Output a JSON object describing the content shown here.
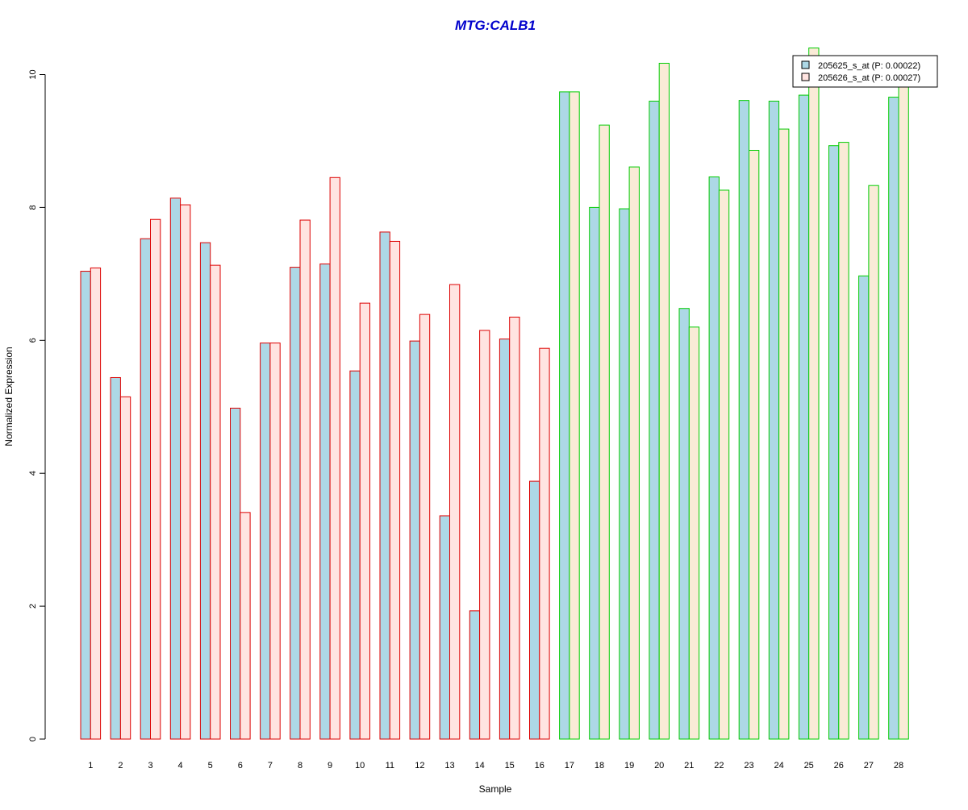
{
  "chart_data": {
    "type": "bar",
    "title": "MTG:CALB1",
    "xlabel": "Sample",
    "ylabel": "Normalized Expression",
    "ylim": [
      0,
      10.4
    ],
    "yticks": [
      "0",
      "2",
      "4",
      "6",
      "8",
      "10"
    ],
    "categories": [
      "1",
      "2",
      "3",
      "4",
      "5",
      "6",
      "7",
      "8",
      "9",
      "10",
      "11",
      "12",
      "13",
      "14",
      "15",
      "16",
      "17",
      "18",
      "19",
      "20",
      "21",
      "22",
      "23",
      "24",
      "25",
      "26",
      "27",
      "28"
    ],
    "groups": [
      {
        "samples": [
          "1",
          "2",
          "3",
          "4",
          "5",
          "6",
          "7",
          "8",
          "9",
          "10",
          "11",
          "12",
          "13",
          "14",
          "15",
          "16"
        ],
        "border_color": "#dd0000"
      },
      {
        "samples": [
          "17",
          "18",
          "19",
          "20",
          "21",
          "22",
          "23",
          "24",
          "25",
          "26",
          "27",
          "28"
        ],
        "border_color": "#00cc00"
      }
    ],
    "series": [
      {
        "name": "205625_s_at (P: 0.00022)",
        "color": "#add8e6",
        "values": [
          7.04,
          5.44,
          7.53,
          8.14,
          7.47,
          4.98,
          5.96,
          7.1,
          7.15,
          5.54,
          7.63,
          5.99,
          3.36,
          1.93,
          6.02,
          3.88,
          9.74,
          8.0,
          7.98,
          9.6,
          6.48,
          8.46,
          9.61,
          9.6,
          9.69,
          8.93,
          6.97,
          9.66
        ]
      },
      {
        "name": "205626_s_at (P: 0.00027)",
        "color_group1": "#ffe4e1",
        "color_group2": "#faebd7",
        "values": [
          7.09,
          5.15,
          7.82,
          8.04,
          7.13,
          3.41,
          5.96,
          7.81,
          8.45,
          6.56,
          7.49,
          6.39,
          6.84,
          6.15,
          6.35,
          5.88,
          9.74,
          9.24,
          8.61,
          10.17,
          6.2,
          8.26,
          8.86,
          9.18,
          10.4,
          8.98,
          8.33,
          9.94
        ]
      }
    ],
    "title_color": "#0000cc",
    "legend_position": "top-right",
    "grid": false
  }
}
